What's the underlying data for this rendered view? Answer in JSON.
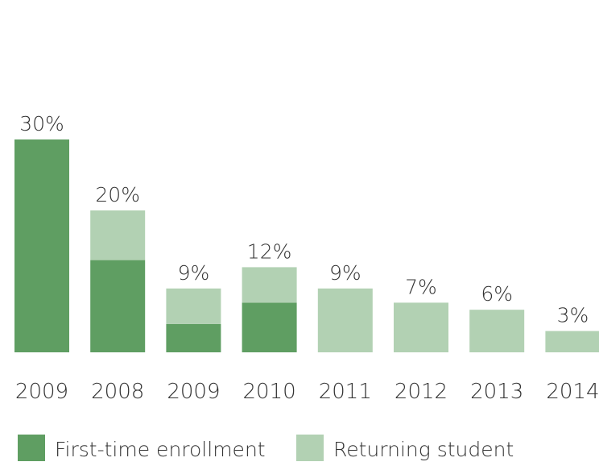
{
  "chart_data": {
    "type": "stacked-bar",
    "categories": [
      "2009",
      "2008",
      "2009",
      "2010",
      "2011",
      "2012",
      "2013",
      "2014"
    ],
    "series": [
      {
        "name": "First-time enrollment",
        "color": "#5f9e62",
        "values": [
          30,
          13,
          4,
          7,
          0,
          0,
          0,
          0
        ]
      },
      {
        "name": "Returning student",
        "color": "#b2d1b3",
        "values": [
          0,
          7,
          5,
          5,
          9,
          7,
          6,
          3
        ]
      }
    ],
    "totals": [
      30,
      20,
      9,
      12,
      9,
      7,
      6,
      3
    ],
    "total_labels": [
      "30%",
      "20%",
      "9%",
      "12%",
      "9%",
      "7%",
      "6%",
      "3%"
    ],
    "legend": "bottom-left"
  }
}
